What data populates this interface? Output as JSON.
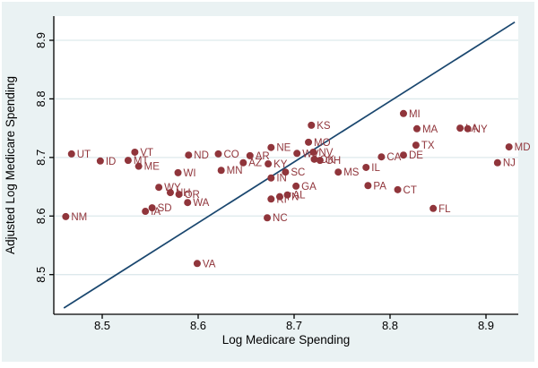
{
  "chart_data": {
    "type": "scatter",
    "title": "",
    "xlabel": "Log Medicare Spending",
    "ylabel": "Adjusted Log Medicare Spending",
    "xlim": [
      8.45,
      8.935
    ],
    "ylim": [
      8.435,
      8.941
    ],
    "xticks": [
      "8.5",
      "8.6",
      "8.7",
      "8.8",
      "8.9"
    ],
    "yticks": [
      "8.5",
      "8.6",
      "8.7",
      "8.8",
      "8.9"
    ],
    "grid": "horizontal",
    "legend": "none",
    "colors": {
      "marker": "#90353B",
      "marker_label": "#90353B",
      "reference_line": "#1A476F",
      "gridline": "#DDE9EC",
      "figure_background": "#EAF2F3",
      "plot_background": "#FFFFFF",
      "axis": "#000000"
    },
    "reference_line": {
      "x1": 8.46,
      "y1": 8.443,
      "x2": 8.93,
      "y2": 8.931,
      "description": "45-degree line"
    },
    "points": [
      {
        "label": "NM",
        "x": 8.462,
        "y": 8.599
      },
      {
        "label": "UT",
        "x": 8.468,
        "y": 8.706
      },
      {
        "label": "ID",
        "x": 8.498,
        "y": 8.694
      },
      {
        "label": "MT",
        "x": 8.527,
        "y": 8.695
      },
      {
        "label": "VT",
        "x": 8.534,
        "y": 8.709
      },
      {
        "label": "ME",
        "x": 8.538,
        "y": 8.685
      },
      {
        "label": "IA",
        "x": 8.545,
        "y": 8.608
      },
      {
        "label": "SD",
        "x": 8.552,
        "y": 8.614
      },
      {
        "label": "WY",
        "x": 8.559,
        "y": 8.649
      },
      {
        "label": "NH",
        "x": 8.571,
        "y": 8.64
      },
      {
        "label": "WI",
        "x": 8.579,
        "y": 8.674
      },
      {
        "label": "OR",
        "x": 8.58,
        "y": 8.637
      },
      {
        "label": "WA",
        "x": 8.589,
        "y": 8.623
      },
      {
        "label": "ND",
        "x": 8.59,
        "y": 8.704
      },
      {
        "label": "VA",
        "x": 8.599,
        "y": 8.519
      },
      {
        "label": "CO",
        "x": 8.621,
        "y": 8.706
      },
      {
        "label": "MN",
        "x": 8.624,
        "y": 8.678
      },
      {
        "label": "AZ",
        "x": 8.647,
        "y": 8.691
      },
      {
        "label": "AR",
        "x": 8.654,
        "y": 8.703
      },
      {
        "label": "NC",
        "x": 8.672,
        "y": 8.597
      },
      {
        "label": "KY",
        "x": 8.673,
        "y": 8.689
      },
      {
        "label": "NE",
        "x": 8.676,
        "y": 8.717
      },
      {
        "label": "IN",
        "x": 8.676,
        "y": 8.665
      },
      {
        "label": "RI",
        "x": 8.676,
        "y": 8.629
      },
      {
        "label": "TN",
        "x": 8.685,
        "y": 8.633
      },
      {
        "label": "SC",
        "x": 8.691,
        "y": 8.675
      },
      {
        "label": "AL",
        "x": 8.693,
        "y": 8.636
      },
      {
        "label": "GA",
        "x": 8.702,
        "y": 8.651
      },
      {
        "label": "WV",
        "x": 8.703,
        "y": 8.707
      },
      {
        "label": "MO",
        "x": 8.715,
        "y": 8.726
      },
      {
        "label": "KS",
        "x": 8.718,
        "y": 8.755
      },
      {
        "label": "NV",
        "x": 8.72,
        "y": 8.709
      },
      {
        "label": "OK",
        "x": 8.721,
        "y": 8.697
      },
      {
        "label": "OH",
        "x": 8.727,
        "y": 8.695
      },
      {
        "label": "MS",
        "x": 8.746,
        "y": 8.675
      },
      {
        "label": "IL",
        "x": 8.775,
        "y": 8.683
      },
      {
        "label": "PA",
        "x": 8.777,
        "y": 8.652
      },
      {
        "label": "CA",
        "x": 8.791,
        "y": 8.701
      },
      {
        "label": "CT",
        "x": 8.808,
        "y": 8.645
      },
      {
        "label": "MI",
        "x": 8.814,
        "y": 8.775
      },
      {
        "label": "DE",
        "x": 8.814,
        "y": 8.704
      },
      {
        "label": "TX",
        "x": 8.827,
        "y": 8.721
      },
      {
        "label": "MA",
        "x": 8.828,
        "y": 8.749
      },
      {
        "label": "FL",
        "x": 8.845,
        "y": 8.613
      },
      {
        "label": "LA",
        "x": 8.873,
        "y": 8.75
      },
      {
        "label": "NY",
        "x": 8.881,
        "y": 8.749
      },
      {
        "label": "NJ",
        "x": 8.912,
        "y": 8.691
      },
      {
        "label": "MD",
        "x": 8.924,
        "y": 8.718
      }
    ]
  }
}
